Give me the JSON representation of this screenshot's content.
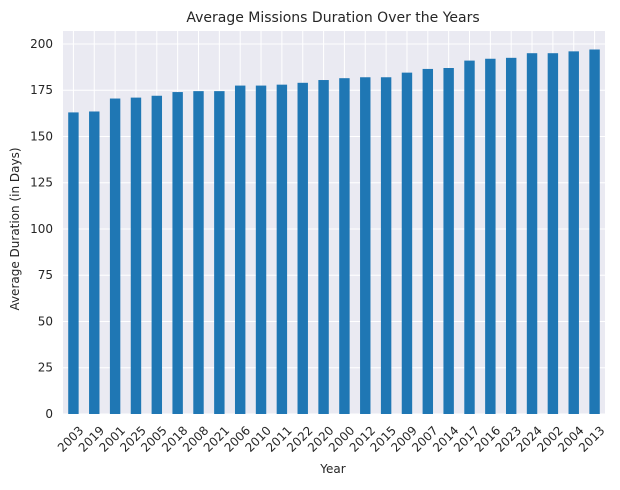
{
  "chart_data": {
    "type": "bar",
    "title": "Average Missions Duration Over the Years",
    "xlabel": "Year",
    "ylabel": "Average Duration (in Days)",
    "categories": [
      "2003",
      "2019",
      "2001",
      "2025",
      "2005",
      "2018",
      "2008",
      "2021",
      "2006",
      "2010",
      "2011",
      "2022",
      "2020",
      "2000",
      "2012",
      "2015",
      "2009",
      "2007",
      "2014",
      "2017",
      "2016",
      "2023",
      "2024",
      "2002",
      "2004",
      "2013"
    ],
    "values": [
      163,
      163.5,
      170.5,
      171,
      172,
      174,
      174.5,
      174.5,
      177.5,
      177.5,
      178,
      179,
      180.5,
      181.5,
      182,
      182,
      184.5,
      186.5,
      187,
      191,
      192,
      192.5,
      195,
      195,
      196,
      197
    ],
    "ylim": [
      0,
      207
    ],
    "yticks": [
      0,
      25,
      50,
      75,
      100,
      125,
      150,
      175,
      200
    ],
    "bar_color": "#1f77b4",
    "grid": true,
    "background": "#eaeaf2"
  }
}
